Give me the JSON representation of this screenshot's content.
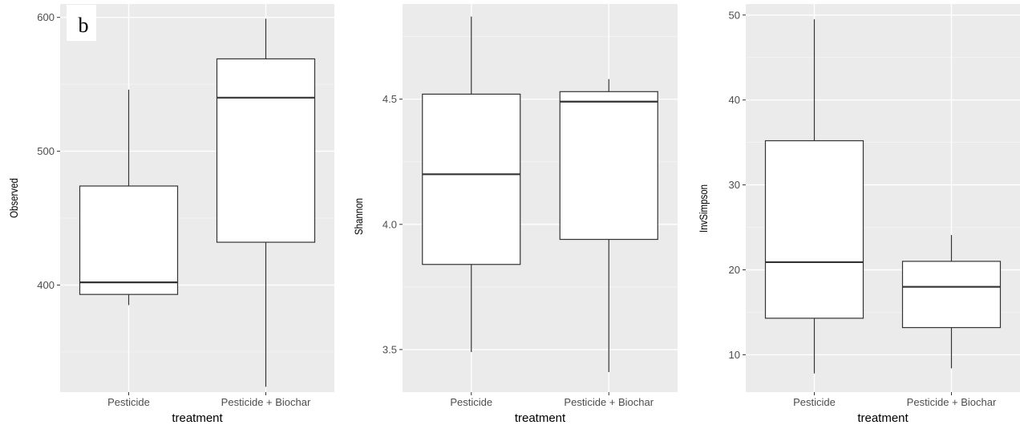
{
  "panel_tag": "b",
  "chart_data": [
    {
      "type": "box",
      "xlabel": "treatment",
      "ylabel": "Observed",
      "categories": [
        "Pesticide",
        "Pesticide + Biochar"
      ],
      "ylim": [
        320,
        610
      ],
      "yticks": [
        400,
        500,
        600
      ],
      "yminor": [
        350,
        450,
        550
      ],
      "boxes": [
        {
          "min": 385,
          "q1": 393,
          "median": 402,
          "q3": 474,
          "max": 546
        },
        {
          "min": 324,
          "q1": 432,
          "median": 540,
          "q3": 569,
          "max": 599
        }
      ],
      "grid": true,
      "panel_background": "#ebebeb"
    },
    {
      "type": "box",
      "xlabel": "treatment",
      "ylabel": "Shannon",
      "categories": [
        "Pesticide",
        "Pesticide + Biochar"
      ],
      "ylim": [
        3.33,
        4.88
      ],
      "yticks": [
        3.5,
        4.0,
        4.5
      ],
      "ytick_labels": [
        "3.5",
        "4.0",
        "4.5"
      ],
      "yminor": [
        3.75,
        4.25,
        4.75
      ],
      "boxes": [
        {
          "min": 3.49,
          "q1": 3.84,
          "median": 4.2,
          "q3": 4.52,
          "max": 4.83
        },
        {
          "min": 3.41,
          "q1": 3.94,
          "median": 4.49,
          "q3": 4.53,
          "max": 4.58
        }
      ],
      "grid": true,
      "panel_background": "#ebebeb"
    },
    {
      "type": "box",
      "xlabel": "treatment",
      "ylabel": "InvSimpson",
      "categories": [
        "Pesticide",
        "Pesticide + Biochar"
      ],
      "ylim": [
        5.6,
        51.3
      ],
      "yticks": [
        10,
        20,
        30,
        40,
        50
      ],
      "yminor": [
        15,
        25,
        35,
        45
      ],
      "boxes": [
        {
          "min": 7.8,
          "q1": 14.3,
          "median": 20.9,
          "q3": 35.2,
          "max": 49.5
        },
        {
          "min": 8.4,
          "q1": 13.2,
          "median": 18.0,
          "q3": 21.0,
          "max": 24.1
        }
      ],
      "grid": true,
      "panel_background": "#ebebeb"
    }
  ]
}
